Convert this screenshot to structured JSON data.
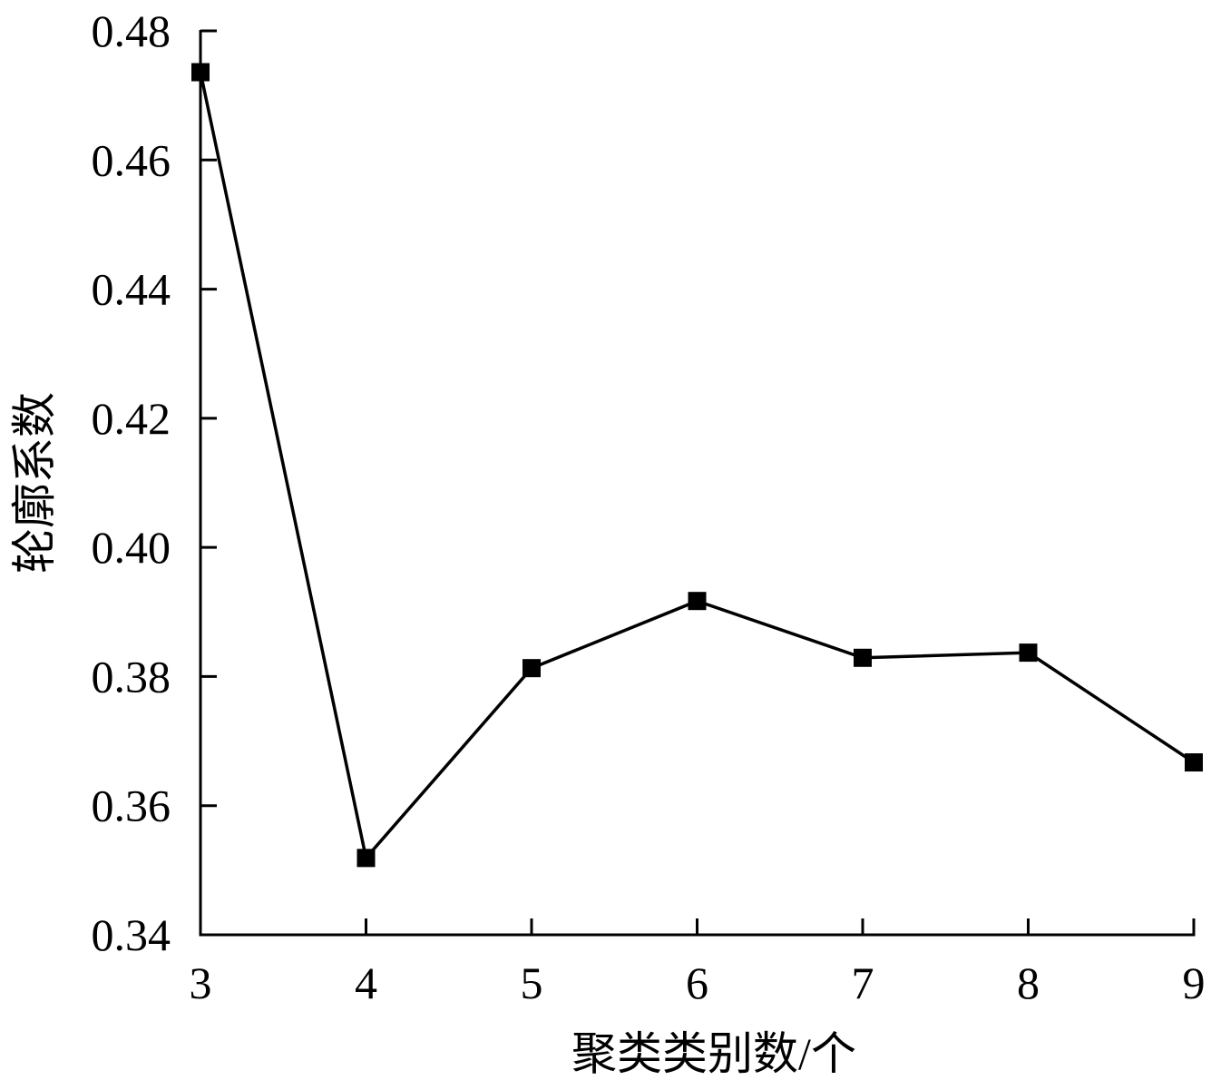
{
  "chart_data": {
    "type": "line",
    "title": "",
    "xlabel": "聚类类别数/个",
    "ylabel": "轮廓系数",
    "x": [
      3,
      4,
      5,
      6,
      7,
      8,
      9
    ],
    "series": [
      {
        "values": [
          0.4736,
          0.3519,
          0.3813,
          0.3917,
          0.3829,
          0.3837,
          0.3667
        ]
      }
    ],
    "xlim": [
      3,
      9
    ],
    "ylim": [
      0.34,
      0.48
    ],
    "x_ticks": [
      "3",
      "4",
      "5",
      "6",
      "7",
      "8",
      "9"
    ],
    "y_ticks": [
      "0.34",
      "0.36",
      "0.38",
      "0.40",
      "0.42",
      "0.44",
      "0.46",
      "0.48"
    ],
    "grid": false,
    "marker": "square",
    "line_color": "#000000",
    "marker_color": "#000000"
  }
}
